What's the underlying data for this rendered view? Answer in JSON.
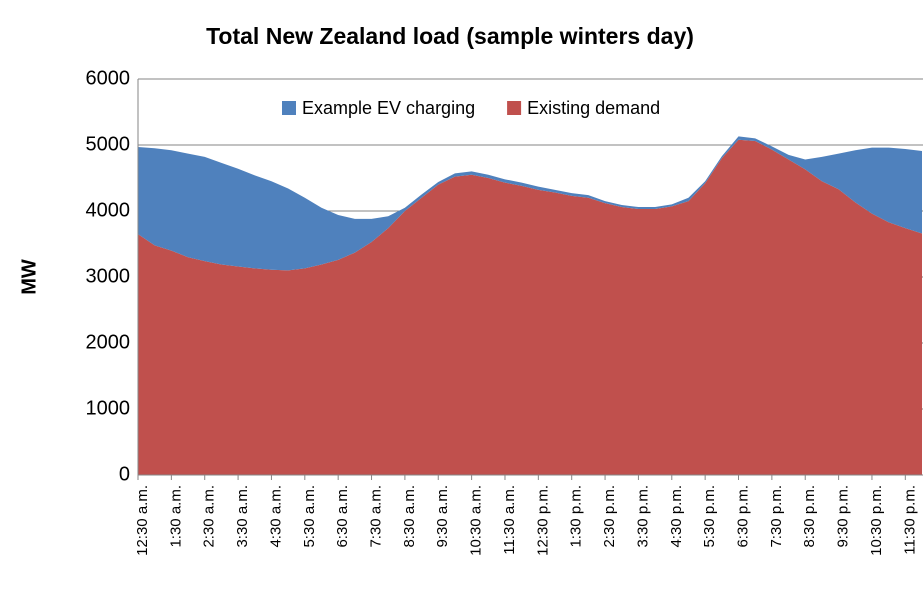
{
  "chart_data": {
    "type": "stacked_area",
    "title": "Total New Zealand load (sample winters day)",
    "y_label": "MW",
    "categories": [
      "12:30 a.m.",
      null,
      "1:30 a.m.",
      null,
      "2:30 a.m.",
      null,
      "3:30 a.m.",
      null,
      "4:30 a.m.",
      null,
      "5:30 a.m.",
      null,
      "6:30 a.m.",
      null,
      "7:30 a.m.",
      null,
      "8:30 a.m.",
      null,
      "9:30 a.m.",
      null,
      "10:30 a.m.",
      null,
      "11:30 a.m.",
      null,
      "12:30 p.m.",
      null,
      "1:30 p.m.",
      null,
      "2:30 p.m.",
      null,
      "3:30 p.m.",
      null,
      "4:30 p.m.",
      null,
      "5:30 p.m.",
      null,
      "6:30 p.m.",
      null,
      "7:30 p.m.",
      null,
      "8:30 p.m.",
      null,
      "9:30 p.m.",
      null,
      "10:30 p.m.",
      null,
      "11:30 p.m.",
      null
    ],
    "series": [
      {
        "name": "Example EV charging",
        "color": "#4f81bd",
        "values": [
          1320,
          1470,
          1520,
          1570,
          1580,
          1540,
          1480,
          1410,
          1340,
          1240,
          1070,
          860,
          680,
          510,
          350,
          180,
          50,
          50,
          40,
          50,
          50,
          50,
          50,
          50,
          50,
          40,
          40,
          40,
          30,
          30,
          30,
          30,
          30,
          50,
          30,
          30,
          50,
          40,
          50,
          70,
          150,
          370,
          540,
          790,
          1000,
          1130,
          1200,
          1250
        ]
      },
      {
        "name": "Existing demand",
        "color": "#c0504d",
        "values": [
          3650,
          3480,
          3400,
          3300,
          3240,
          3190,
          3160,
          3130,
          3110,
          3100,
          3130,
          3190,
          3260,
          3370,
          3530,
          3740,
          4000,
          4200,
          4400,
          4520,
          4550,
          4500,
          4430,
          4380,
          4320,
          4280,
          4230,
          4200,
          4120,
          4060,
          4030,
          4030,
          4070,
          4150,
          4420,
          4800,
          5080,
          5060,
          4930,
          4780,
          4630,
          4450,
          4330,
          4130,
          3960,
          3830,
          3740,
          3660
        ]
      }
    ],
    "ylim": [
      0,
      6000
    ],
    "yticks": [
      0,
      1000,
      2000,
      3000,
      4000,
      5000,
      6000
    ],
    "grid": true,
    "legend": "top"
  }
}
